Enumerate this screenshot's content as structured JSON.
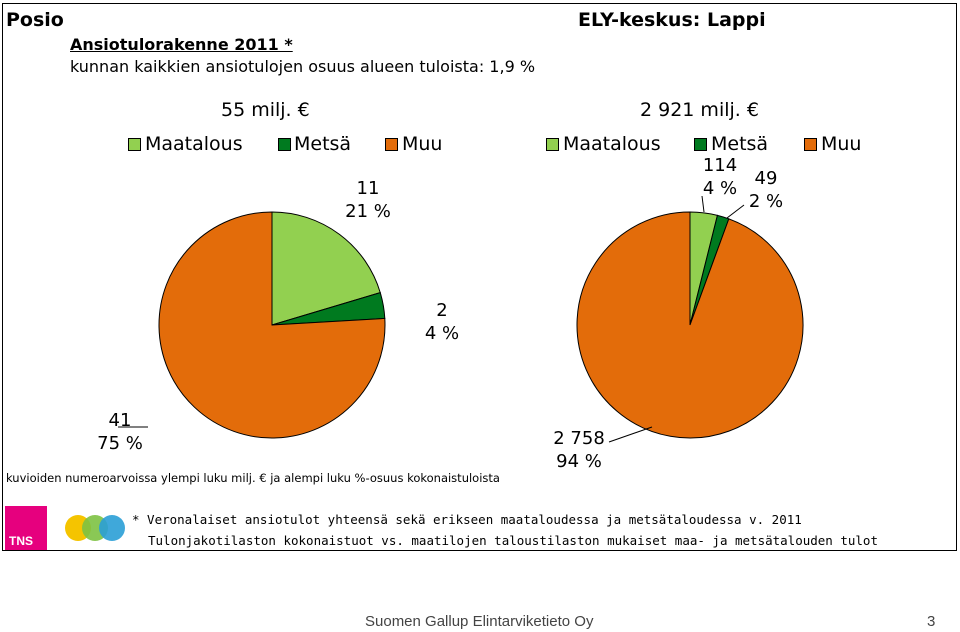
{
  "header": {
    "region": "Posio",
    "structure_title": "Ansiotulorakenne 2011 *",
    "share_text": "kunnan kaikkien ansiotulojen osuus alueen tuloista: 1,9 %",
    "ely_title": "ELY-keskus: Lappi"
  },
  "colors": {
    "Maatalous": "#92d050",
    "Metsä": "#007a1f",
    "Muu": "#e36c0a",
    "tns_brand": "#e6007e"
  },
  "chart_data": [
    {
      "type": "pie",
      "total_label": "55 milj. €",
      "legend": [
        "Maatalous",
        "Metsä",
        "Muu"
      ],
      "categories": [
        "Maatalous",
        "Metsä",
        "Muu"
      ],
      "values": [
        11,
        2,
        41
      ],
      "percents": [
        21,
        4,
        75
      ],
      "value_labels": [
        "11",
        "2",
        "41"
      ],
      "percent_labels": [
        "21 %",
        "4 %",
        "75 %"
      ]
    },
    {
      "type": "pie",
      "total_label": "2 921 milj. €",
      "legend": [
        "Maatalous",
        "Metsä",
        "Muu"
      ],
      "categories": [
        "Maatalous",
        "Metsä",
        "Muu"
      ],
      "values": [
        114,
        49,
        2758
      ],
      "percents": [
        4,
        2,
        94
      ],
      "value_labels": [
        "114",
        "49",
        "2 758"
      ],
      "percent_labels": [
        "4 %",
        "2 %",
        "94 %"
      ]
    }
  ],
  "note": "kuvioiden numeroarvoissa ylempi luku milj. € ja alempi luku %-osuus kokonaistuloista",
  "footnote_line1": "* Veronalaiset ansiotulot yhteensä sekä erikseen maataloudessa ja metsätaloudessa v. 2011",
  "footnote_line2": "Tulonjakotilaston kokonaistuot vs. maatilojen taloustilaston mukaiset maa- ja metsätalouden tulot",
  "logo_tns": "TNS",
  "footer": {
    "company": "Suomen Gallup Elintarviketieto Oy",
    "page": "3"
  }
}
